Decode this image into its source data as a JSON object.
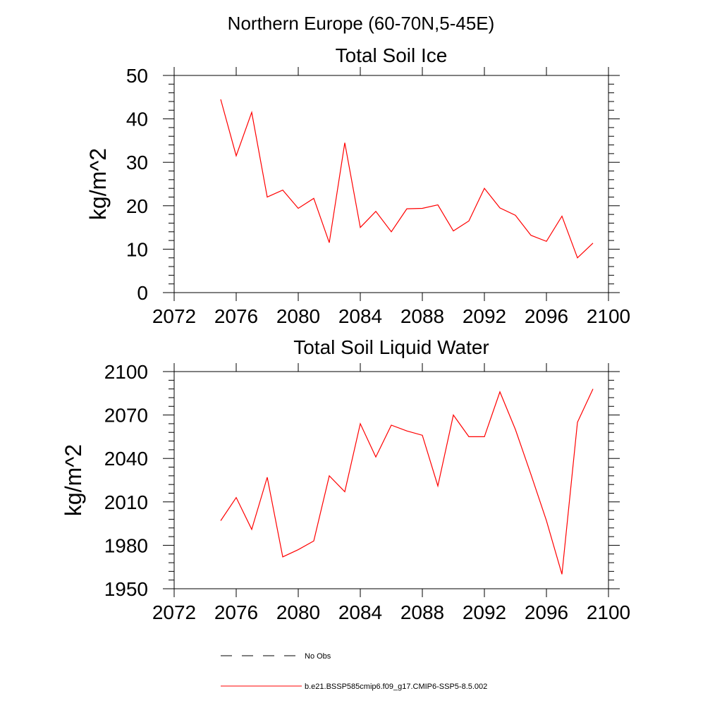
{
  "suptitle": "Northern Europe (60-70N,5-45E)",
  "colors": {
    "series": "#ff0000",
    "axis": "#000000",
    "obs": "#000000"
  },
  "legend": [
    {
      "label": "No Obs",
      "style": "dashed",
      "color": "#000000"
    },
    {
      "label": "b.e21.BSSP585cmip6.f09_g17.CMIP6-SSP5-8.5.002",
      "style": "solid",
      "color": "#ff0000"
    }
  ],
  "chart_data": [
    {
      "type": "line",
      "title": "Total Soil Ice",
      "xlabel": "",
      "ylabel": "kg/m^2",
      "xlim": [
        2072,
        2100
      ],
      "ylim": [
        0,
        50
      ],
      "xticks": [
        2072,
        2076,
        2080,
        2084,
        2088,
        2092,
        2096,
        2100
      ],
      "xtick_labels": [
        "2072",
        "2076",
        "2080",
        "2084",
        "2088",
        "2092",
        "2096",
        "2100"
      ],
      "yticks": [
        0,
        10,
        20,
        30,
        40,
        50
      ],
      "ytick_labels": [
        "0",
        "10",
        "20",
        "30",
        "40",
        "50"
      ],
      "grid": false,
      "series": [
        {
          "name": "b.e21.BSSP585cmip6.f09_g17.CMIP6-SSP5-8.5.002",
          "x": [
            2075,
            2076,
            2077,
            2078,
            2079,
            2080,
            2081,
            2082,
            2083,
            2084,
            2085,
            2086,
            2087,
            2088,
            2089,
            2090,
            2091,
            2092,
            2093,
            2094,
            2095,
            2096,
            2097,
            2098,
            2099
          ],
          "y": [
            44.5,
            31.5,
            41.5,
            22.0,
            23.6,
            19.4,
            21.7,
            11.5,
            34.5,
            15.0,
            18.7,
            14.0,
            19.3,
            19.4,
            20.2,
            14.2,
            16.5,
            24.0,
            19.5,
            17.8,
            13.2,
            11.8,
            17.6,
            8.0,
            11.4
          ]
        }
      ]
    },
    {
      "type": "line",
      "title": "Total Soil Liquid Water",
      "xlabel": "",
      "ylabel": "kg/m^2",
      "xlim": [
        2072,
        2100
      ],
      "ylim": [
        1950,
        2100
      ],
      "xticks": [
        2072,
        2076,
        2080,
        2084,
        2088,
        2092,
        2096,
        2100
      ],
      "xtick_labels": [
        "2072",
        "2076",
        "2080",
        "2084",
        "2088",
        "2092",
        "2096",
        "2100"
      ],
      "yticks": [
        1950,
        1980,
        2010,
        2040,
        2070,
        2100
      ],
      "ytick_labels": [
        "1950",
        "1980",
        "2010",
        "2040",
        "2070",
        "2100"
      ],
      "grid": false,
      "series": [
        {
          "name": "b.e21.BSSP585cmip6.f09_g17.CMIP6-SSP5-8.5.002",
          "x": [
            2075,
            2076,
            2077,
            2078,
            2079,
            2080,
            2081,
            2082,
            2083,
            2084,
            2085,
            2086,
            2087,
            2088,
            2089,
            2090,
            2091,
            2092,
            2093,
            2094,
            2095,
            2096,
            2097,
            2098,
            2099
          ],
          "y": [
            1997,
            2013,
            1991,
            2027,
            1972,
            1977,
            1983,
            2028,
            2017,
            2064,
            2041,
            2063,
            2059,
            2056,
            2021,
            2070,
            2055,
            2055,
            2086,
            2060,
            2029,
            1997,
            1960,
            2065,
            2088
          ]
        }
      ]
    }
  ]
}
